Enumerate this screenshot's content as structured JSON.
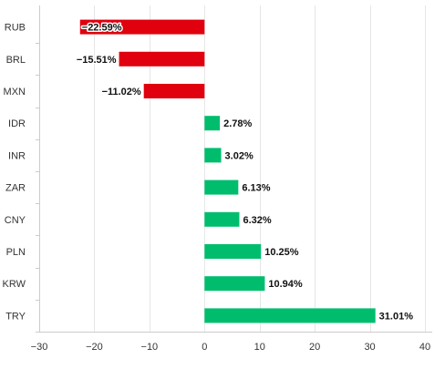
{
  "chart_data": {
    "type": "bar",
    "orientation": "horizontal",
    "categories": [
      "RUB",
      "BRL",
      "MXN",
      "IDR",
      "INR",
      "ZAR",
      "CNY",
      "PLN",
      "KRW",
      "TRY"
    ],
    "values": [
      -22.59,
      -15.51,
      -11.02,
      2.78,
      3.02,
      6.13,
      6.32,
      10.25,
      10.94,
      31.01
    ],
    "data_labels": [
      "−22.59%",
      "−15.51%",
      "−11.02%",
      "2.78%",
      "3.02%",
      "6.13%",
      "6.32%",
      "10.25%",
      "10.94%",
      "31.01%"
    ],
    "xlim": [
      -30,
      40
    ],
    "xticks": [
      -30,
      -20,
      -10,
      0,
      10,
      20,
      30,
      40
    ],
    "xtick_labels": [
      "−30",
      "−20",
      "−10",
      "0",
      "10",
      "20",
      "30",
      "40"
    ],
    "grid": true,
    "legend": "none",
    "colors": {
      "negative": "#e0000e",
      "positive": "#00bd6e",
      "grid": "#e6e6e6",
      "axis": "#cccccc"
    }
  }
}
